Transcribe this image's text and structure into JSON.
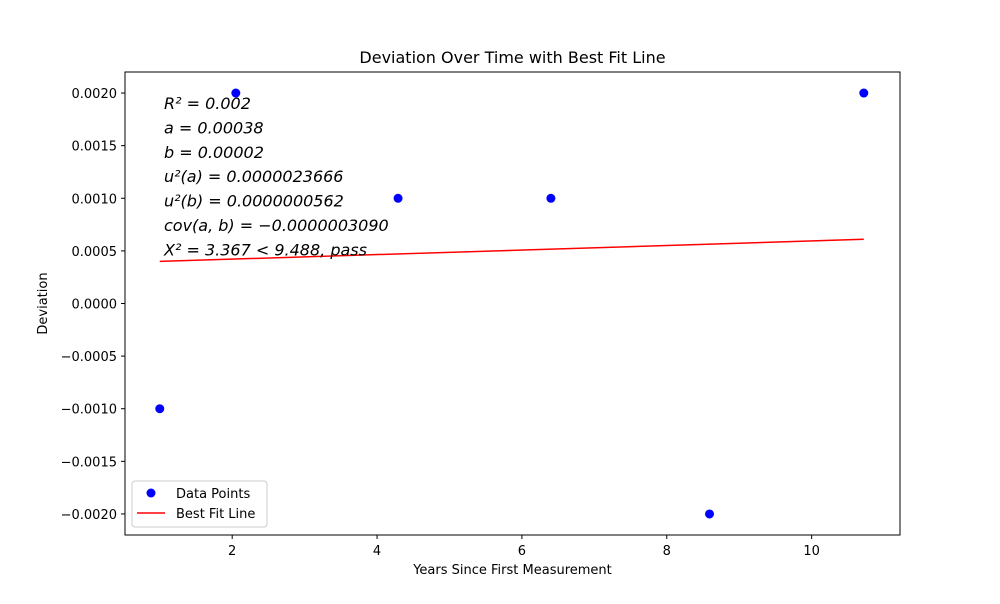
{
  "chart_data": {
    "type": "scatter",
    "title": "Deviation Over Time with Best Fit Line",
    "xlabel": "Years Since First Measurement",
    "ylabel": "Deviation",
    "xlim": [
      0.52,
      11.22
    ],
    "ylim": [
      -0.0022,
      0.0022
    ],
    "x_ticks": [
      2,
      4,
      6,
      8,
      10
    ],
    "x_tick_labels": [
      "2",
      "4",
      "6",
      "8",
      "10"
    ],
    "y_ticks": [
      0.002,
      0.0015,
      0.001,
      0.0005,
      0.0,
      -0.0005,
      -0.001,
      -0.0015,
      -0.002
    ],
    "y_tick_labels": [
      "0.0020",
      "0.0015",
      "0.0010",
      "0.0005",
      "0.0000",
      "−0.0005",
      "−0.0010",
      "−0.0015",
      "−0.0020"
    ],
    "grid": false,
    "legend_position": "lower-left",
    "series": [
      {
        "name": "Data Points",
        "kind": "scatter",
        "color": "#0000ff",
        "x": [
          1.0,
          2.05,
          4.29,
          6.4,
          8.59,
          10.72
        ],
        "y": [
          -0.001,
          0.002,
          0.001,
          0.001,
          -0.002,
          0.002
        ]
      },
      {
        "name": "Best Fit Line",
        "kind": "line",
        "color": "#ff0000",
        "x": [
          1.0,
          10.72
        ],
        "y": [
          0.0004,
          0.00061
        ]
      }
    ],
    "annotations": [
      "R² = 0.002",
      "a = 0.00038",
      "b = 0.00002",
      "u²(a) = 0.0000023666",
      "u²(b) = 0.0000000562",
      "cov(a, b) = −0.0000003090",
      "X² = 3.367 < 9.488, pass"
    ]
  }
}
